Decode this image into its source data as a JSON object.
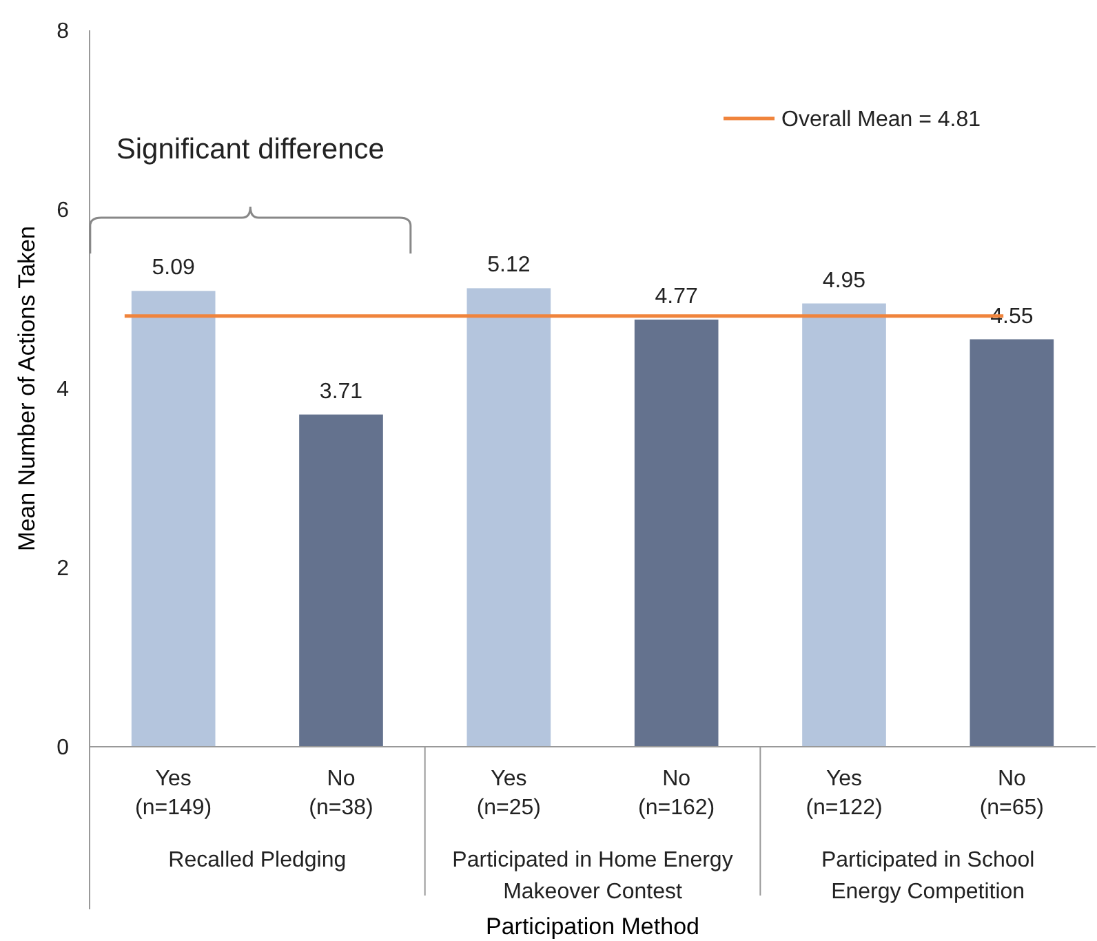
{
  "chart_data": {
    "type": "bar",
    "xlabel": "Participation Method",
    "ylabel": "Mean Number of Actions Taken",
    "categories": [
      "Yes\n(n=149)",
      "No\n(n=38)",
      "Yes\n(n=25)",
      "No\n(n=162)",
      "Yes\n(n=122)",
      "No\n(n=65)"
    ],
    "values": [
      5.09,
      3.71,
      5.12,
      4.77,
      4.95,
      4.55
    ],
    "colors": [
      "#b4c5dd",
      "#64728e",
      "#b4c5dd",
      "#64728e",
      "#b4c5dd",
      "#64728e"
    ],
    "ylim": [
      0,
      8
    ],
    "yticks": [
      0,
      2,
      4,
      6,
      8
    ],
    "grid": false,
    "data_labels": true,
    "legend": "top right",
    "ref_lines": [
      {
        "axis": "y",
        "value": 4.81,
        "label": "Overall Mean = 4.81",
        "color": "#f0843c"
      }
    ],
    "annotations": [
      "Recalled Pledging",
      "Participated in Home Energy Makeover Contest",
      "Participated in School Energy Competition",
      "Significant difference"
    ]
  }
}
